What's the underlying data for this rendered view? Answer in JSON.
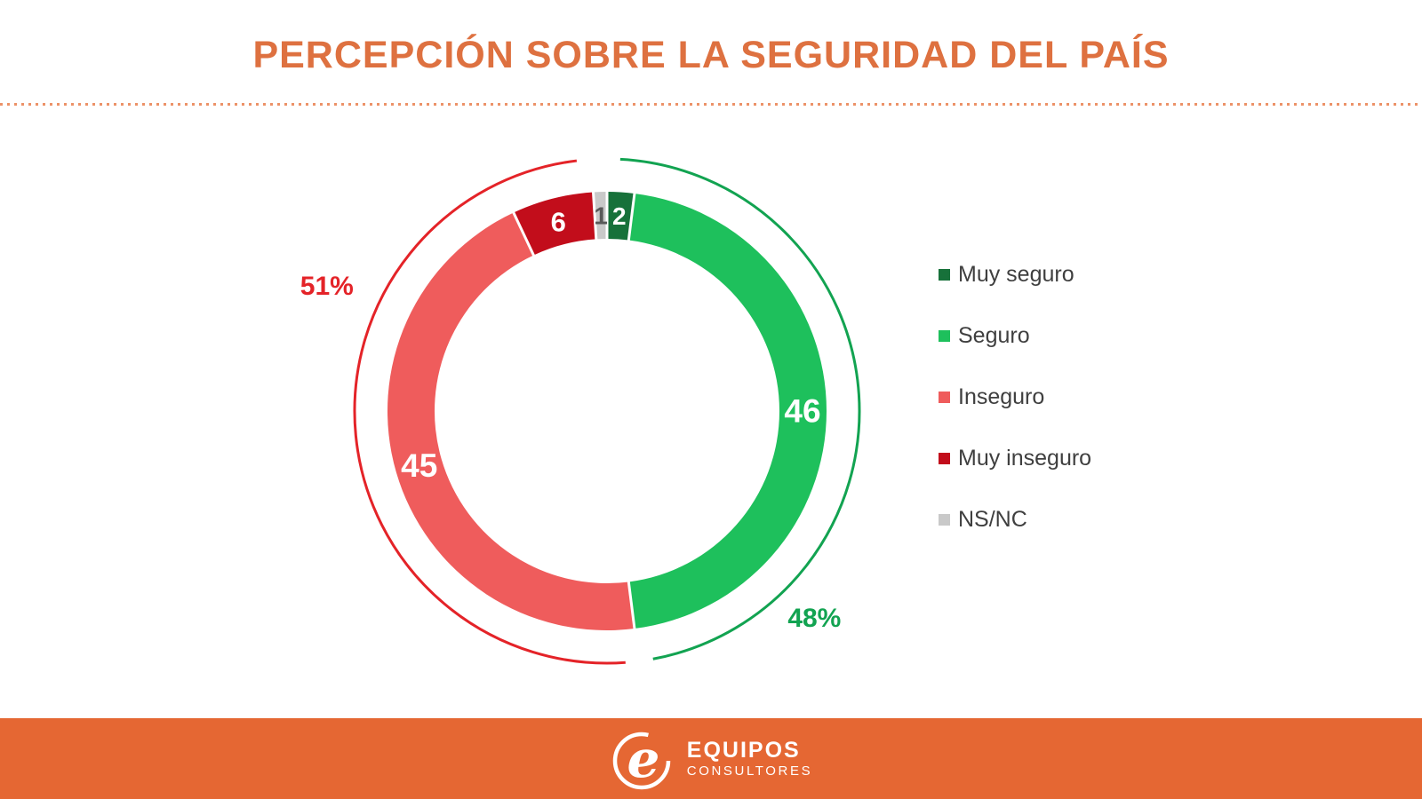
{
  "title": "PERCEPCIÓN SOBRE LA SEGURIDAD DEL PAÍS",
  "theme": {
    "title_color": "#de7140",
    "divider_color": "#ec9268",
    "footer_bg": "#e56733",
    "legend_text_color": "#3f3f3f"
  },
  "footer": {
    "logo": "equipos-script-e-logo",
    "brand": "EQUIPOS",
    "brand_sub": "CONSULTORES"
  },
  "chart_data": {
    "type": "donut",
    "title": "PERCEPCIÓN SOBRE LA SEGURIDAD DEL PAÍS",
    "categories": [
      "Muy seguro",
      "Seguro",
      "Inseguro",
      "Muy inseguro",
      "NS/NC"
    ],
    "values": [
      2,
      46,
      45,
      6,
      1
    ],
    "colors": [
      "#17713a",
      "#1ec05c",
      "#ef5c5c",
      "#c20d1b",
      "#c9c9c9"
    ],
    "value_label_colors": [
      "#ffffff",
      "#ffffff",
      "#ffffff",
      "#ffffff",
      "#595959"
    ],
    "start_angle_deg": 0,
    "direction": "clockwise",
    "total": 100,
    "legend_position": "right",
    "summary_arcs": [
      {
        "label": "48%",
        "color": "#12a351",
        "covers": [
          "Muy seguro",
          "Seguro"
        ],
        "label_angle_deg": 135,
        "label_radius": 330
      },
      {
        "label": "51%",
        "color": "#e42328",
        "covers": [
          "Inseguro",
          "Muy inseguro"
        ],
        "label_angle_deg": 294,
        "label_radius": 345
      }
    ]
  }
}
